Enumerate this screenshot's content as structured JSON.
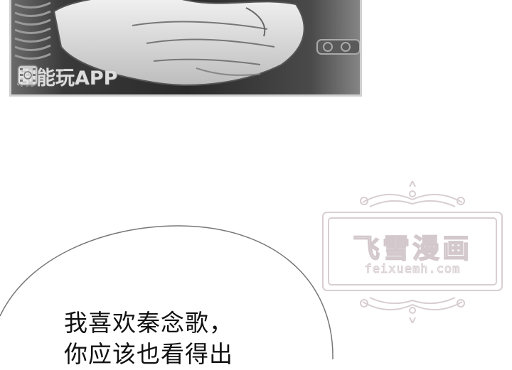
{
  "panel": {
    "watermark_text": "剧能玩APP",
    "watermark_icon": "film-logo-icon"
  },
  "site_watermark": {
    "title": "飞雪漫画",
    "url": "feixuemh.com"
  },
  "speech_bubble": {
    "lines": [
      "我喜欢秦念歌，",
      "你应该也看得出"
    ]
  },
  "colors": {
    "panel_bg": "#e8e8e8",
    "panel_border": "#cfcfcf",
    "watermark_stroke": "#d3c8cc",
    "bubble_stroke": "#777777",
    "text": "#111111"
  }
}
